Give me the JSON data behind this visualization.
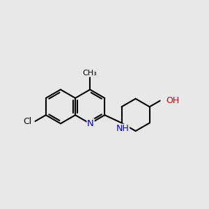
{
  "background_color": "#e8e8e8",
  "bond_lw": 1.5,
  "figsize": [
    3.0,
    3.0
  ],
  "dpi": 100,
  "xlim": [
    0.0,
    10.0
  ],
  "ylim": [
    1.5,
    9.5
  ],
  "ring_r": 0.82,
  "cyc_r": 0.78,
  "N_color": "#0000ee",
  "O_color": "#dd0000",
  "C_color": "#000000",
  "methyl_label": "CH₃",
  "Cl_label": "Cl",
  "N_label": "N",
  "NH_label": "NH",
  "OH_label": "OH"
}
